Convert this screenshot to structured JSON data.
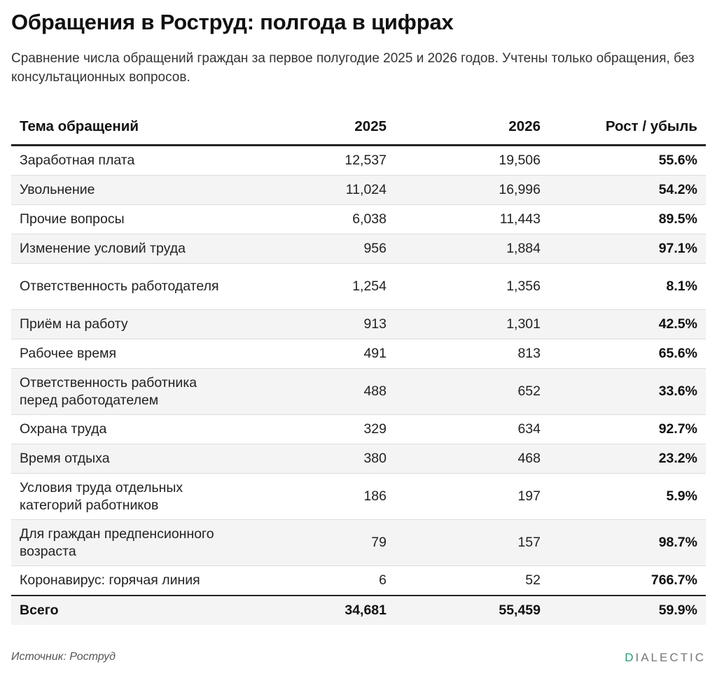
{
  "title": "Обращения в Роструд: полгода в цифрах",
  "subtitle": "Сравнение числа обращений граждан за первое полугодие 2025 и 2026 годов. Учтены только обращения, без консультационных вопросов.",
  "chart_data": {
    "type": "table",
    "columns": [
      "Тема обращений",
      "2025",
      "2026",
      "Рост / убыль"
    ],
    "rows": [
      {
        "topic": "Заработная плата",
        "y2025": "12,537",
        "y2026": "19,506",
        "change": "55.6%"
      },
      {
        "topic": "Увольнение",
        "y2025": "11,024",
        "y2026": "16,996",
        "change": "54.2%"
      },
      {
        "topic": "Прочие вопросы",
        "y2025": "6,038",
        "y2026": "11,443",
        "change": "89.5%"
      },
      {
        "topic": "Изменение условий труда",
        "y2025": "956",
        "y2026": "1,884",
        "change": "97.1%"
      },
      {
        "topic": "Ответственность работодателя",
        "y2025": "1,254",
        "y2026": "1,356",
        "change": "8.1%"
      },
      {
        "topic": "Приём на работу",
        "y2025": "913",
        "y2026": "1,301",
        "change": "42.5%"
      },
      {
        "topic": "Рабочее время",
        "y2025": "491",
        "y2026": "813",
        "change": "65.6%"
      },
      {
        "topic": "Ответственность работника перед работодателем",
        "y2025": "488",
        "y2026": "652",
        "change": "33.6%"
      },
      {
        "topic": "Охрана труда",
        "y2025": "329",
        "y2026": "634",
        "change": "92.7%"
      },
      {
        "topic": "Время отдыха",
        "y2025": "380",
        "y2026": "468",
        "change": "23.2%"
      },
      {
        "topic": "Условия труда отдельных категорий работников",
        "y2025": "186",
        "y2026": "197",
        "change": "5.9%"
      },
      {
        "topic": "Для граждан предпенсионного возраста",
        "y2025": "79",
        "y2026": "157",
        "change": "98.7%"
      },
      {
        "topic": "Коронавирус: горячая линия",
        "y2025": "6",
        "y2026": "52",
        "change": "766.7%"
      }
    ],
    "total": {
      "label": "Всего",
      "y2025": "34,681",
      "y2026": "55,459",
      "change": "59.9%"
    }
  },
  "footer": {
    "source": "Источник: Роструд",
    "brand_prefix": "D",
    "brand_rest": "IALECTIC",
    "brand_accent_color": "#1aa37a"
  }
}
